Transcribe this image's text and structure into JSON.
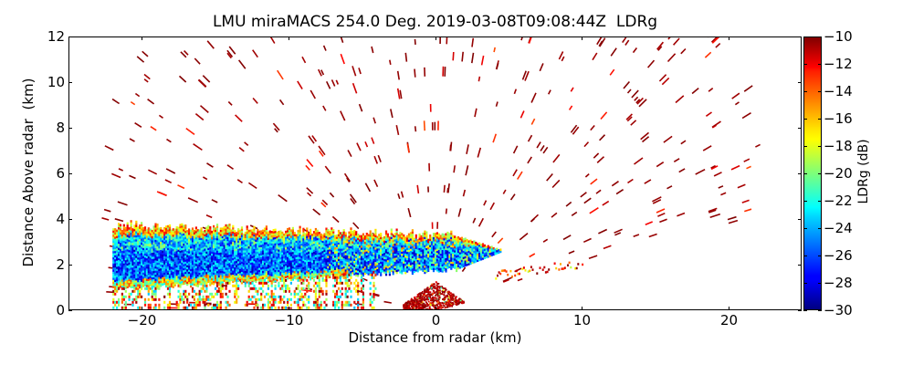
{
  "chart_data": {
    "type": "heatmap",
    "subtype": "radar RHI scan (range-height)",
    "title": "LMU miraMACS 254.0 Deg. 2019-03-08T09:08:44Z  LDRg",
    "xlabel": "Distance from radar (km)",
    "ylabel": "Distance Above radar  (km)",
    "xlim": [
      -25,
      25
    ],
    "ylim": [
      0,
      12
    ],
    "xticks": [
      -20,
      -10,
      0,
      10,
      20
    ],
    "xtick_labels": [
      "−20",
      "−10",
      "0",
      "10",
      "20"
    ],
    "yticks": [
      0,
      2,
      4,
      6,
      8,
      10,
      12
    ],
    "ytick_labels": [
      "0",
      "2",
      "4",
      "6",
      "8",
      "10",
      "12"
    ],
    "grid": false,
    "colorbar": {
      "label": "LDRg (dB)",
      "colormap": "jet",
      "range": [
        -30,
        -10
      ],
      "ticks": [
        -10,
        -12,
        -14,
        -16,
        -18,
        -20,
        -22,
        -24,
        -26,
        -28,
        -30
      ],
      "tick_labels": [
        "−10",
        "−12",
        "−14",
        "−16",
        "−18",
        "−20",
        "−22",
        "−24",
        "−26",
        "−28",
        "−30"
      ],
      "placement": "right"
    },
    "features": [
      {
        "name": "cloud-layer",
        "x_range_km": [
          -22,
          4.5
        ],
        "height_range_km": [
          0.5,
          3.8
        ],
        "ldr_db_typical": [
          -30,
          -20
        ]
      },
      {
        "name": "near-radar-clutter",
        "x_range_km": [
          -2,
          2
        ],
        "height_range_km": [
          0,
          1.3
        ],
        "ldr_db_typical": [
          -12,
          -10
        ]
      },
      {
        "name": "noise-speckle",
        "x_range_km": [
          -22,
          22
        ],
        "height_range_km": [
          0,
          12
        ],
        "ldr_db_typical": [
          -12,
          -10
        ]
      }
    ],
    "scan_lower_edge": {
      "from_km": [
        0,
        0
      ],
      "to_km": [
        21.5,
        4
      ]
    }
  }
}
